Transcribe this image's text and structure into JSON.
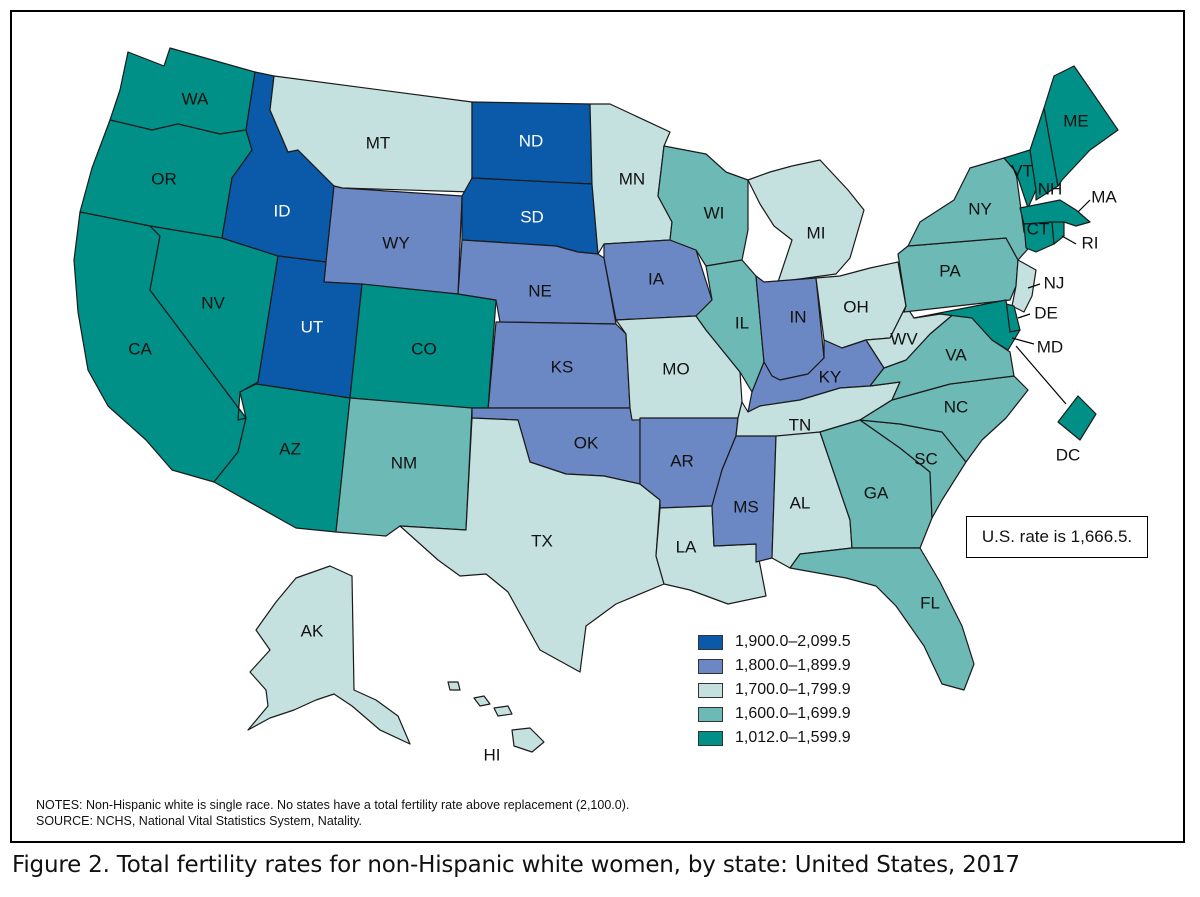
{
  "legend": [
    {
      "label": "1,900.0–2,099.5",
      "color": "#0b5aa9"
    },
    {
      "label": "1,800.0–1,899.9",
      "color": "#6c88c4"
    },
    {
      "label": "1,700.0–1,799.9",
      "color": "#c4e1e0"
    },
    {
      "label": "1,600.0–1,699.9",
      "color": "#6db9b5"
    },
    {
      "label": "1,012.0–1,599.9",
      "color": "#009087"
    }
  ],
  "us_rate_text": "U.S. rate is 1,666.5.",
  "notes": {
    "line1": "NOTES: Non-Hispanic white is single race. No states have a total fertility rate above replacement (2,100.0).",
    "line2": "SOURCE: NCHS, National Vital Statistics System, Natality."
  },
  "caption": "Figure 2. Total fertility rates for non-Hispanic white women, by state: United States, 2017",
  "states": [
    {
      "abbr": "WA",
      "class": 4
    },
    {
      "abbr": "OR",
      "class": 4
    },
    {
      "abbr": "CA",
      "class": 4
    },
    {
      "abbr": "NV",
      "class": 4
    },
    {
      "abbr": "ID",
      "class": 0
    },
    {
      "abbr": "MT",
      "class": 2
    },
    {
      "abbr": "WY",
      "class": 1
    },
    {
      "abbr": "UT",
      "class": 0
    },
    {
      "abbr": "CO",
      "class": 4
    },
    {
      "abbr": "AZ",
      "class": 4
    },
    {
      "abbr": "NM",
      "class": 3
    },
    {
      "abbr": "ND",
      "class": 0
    },
    {
      "abbr": "SD",
      "class": 0
    },
    {
      "abbr": "NE",
      "class": 1
    },
    {
      "abbr": "KS",
      "class": 1
    },
    {
      "abbr": "OK",
      "class": 1
    },
    {
      "abbr": "TX",
      "class": 2
    },
    {
      "abbr": "MN",
      "class": 2
    },
    {
      "abbr": "IA",
      "class": 1
    },
    {
      "abbr": "MO",
      "class": 2
    },
    {
      "abbr": "AR",
      "class": 1
    },
    {
      "abbr": "LA",
      "class": 2
    },
    {
      "abbr": "WI",
      "class": 3
    },
    {
      "abbr": "IL",
      "class": 3
    },
    {
      "abbr": "MI",
      "class": 2
    },
    {
      "abbr": "IN",
      "class": 1
    },
    {
      "abbr": "OH",
      "class": 2
    },
    {
      "abbr": "KY",
      "class": 1
    },
    {
      "abbr": "TN",
      "class": 2
    },
    {
      "abbr": "MS",
      "class": 1
    },
    {
      "abbr": "AL",
      "class": 2
    },
    {
      "abbr": "GA",
      "class": 3
    },
    {
      "abbr": "FL",
      "class": 3
    },
    {
      "abbr": "SC",
      "class": 3
    },
    {
      "abbr": "NC",
      "class": 3
    },
    {
      "abbr": "VA",
      "class": 3
    },
    {
      "abbr": "WV",
      "class": 2
    },
    {
      "abbr": "PA",
      "class": 3
    },
    {
      "abbr": "NY",
      "class": 3
    },
    {
      "abbr": "VT",
      "class": 4
    },
    {
      "abbr": "NH",
      "class": 4
    },
    {
      "abbr": "ME",
      "class": 4
    },
    {
      "abbr": "MA",
      "class": 4
    },
    {
      "abbr": "RI",
      "class": 4
    },
    {
      "abbr": "CT",
      "class": 4
    },
    {
      "abbr": "NJ",
      "class": 2
    },
    {
      "abbr": "DE",
      "class": 4
    },
    {
      "abbr": "MD",
      "class": 4
    },
    {
      "abbr": "DC",
      "class": 4
    },
    {
      "abbr": "AK",
      "class": 2
    },
    {
      "abbr": "HI",
      "class": 2
    }
  ]
}
